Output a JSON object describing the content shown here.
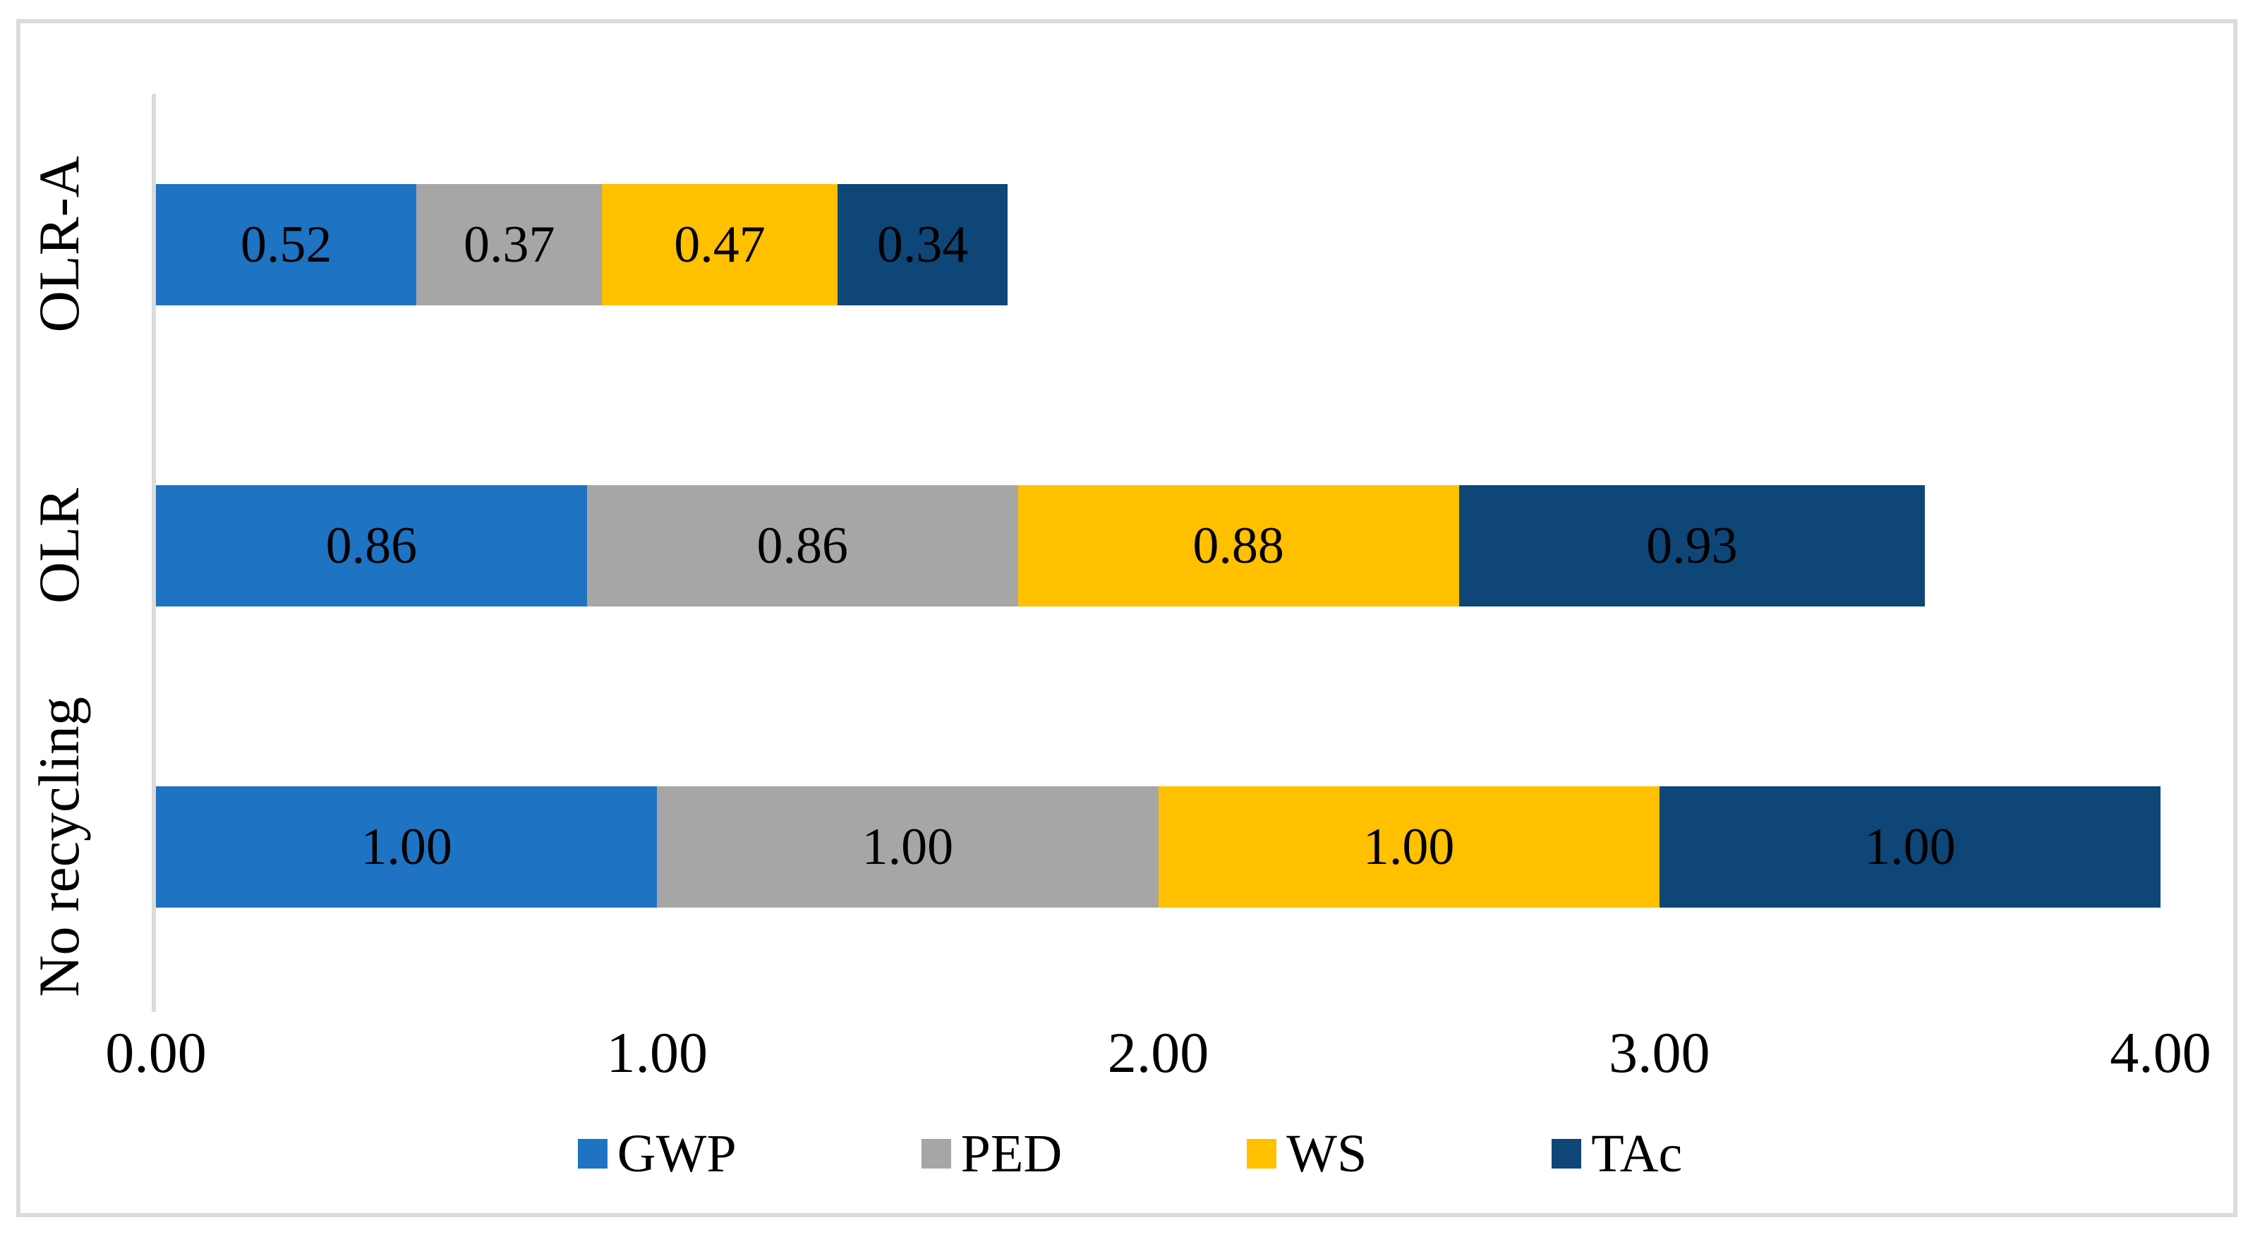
{
  "chart_data": {
    "type": "bar",
    "orientation": "horizontal",
    "stacked": true,
    "title": "",
    "xlabel": "",
    "ylabel": "",
    "xlim": [
      0,
      4
    ],
    "x_ticks": [
      "0.00",
      "1.00",
      "2.00",
      "3.00",
      "4.00"
    ],
    "grid": false,
    "legend_position": "bottom",
    "categories": [
      "OLR-A",
      "OLR",
      "No recycling"
    ],
    "series": [
      {
        "name": "GWP",
        "color": "#1E73C2",
        "values": [
          0.52,
          0.86,
          1.0
        ]
      },
      {
        "name": "PED",
        "color": "#A6A6A6",
        "values": [
          0.37,
          0.86,
          1.0
        ]
      },
      {
        "name": "WS",
        "color": "#FFC000",
        "values": [
          0.47,
          0.88,
          1.0
        ]
      },
      {
        "name": "TAc",
        "color": "#0E4678",
        "values": [
          0.34,
          0.93,
          1.0
        ]
      }
    ],
    "data_labels": [
      [
        "0.52",
        "0.37",
        "0.47",
        "0.34"
      ],
      [
        "0.86",
        "0.86",
        "0.88",
        "0.93"
      ],
      [
        "1.00",
        "1.00",
        "1.00",
        "1.00"
      ]
    ]
  },
  "style": {
    "frame_color": "#DBDBDB",
    "axis_line_color": "#DBDBDB",
    "background": "#FFFFFF",
    "label_text_color": "#000000"
  }
}
